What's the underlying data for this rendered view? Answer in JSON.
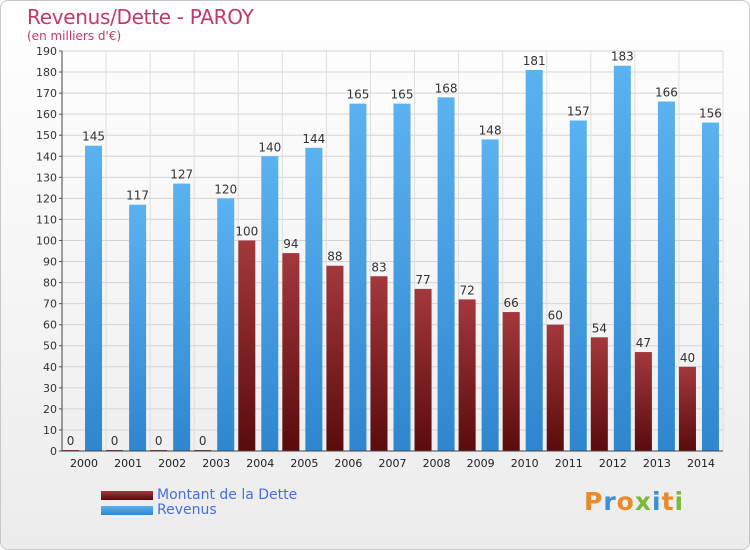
{
  "chart_data": {
    "type": "bar",
    "title": "Revenus/Dette - PAROY",
    "subtitle": "(en milliers d'€)",
    "categories": [
      "2000",
      "2001",
      "2002",
      "2003",
      "2004",
      "2005",
      "2006",
      "2007",
      "2008",
      "2009",
      "2010",
      "2011",
      "2012",
      "2013",
      "2014"
    ],
    "series": [
      {
        "name": "Montant de la Dette",
        "color": "#6b0f10",
        "values": [
          0,
          0,
          0,
          0,
          100,
          94,
          88,
          83,
          77,
          72,
          66,
          60,
          54,
          47,
          40
        ]
      },
      {
        "name": "Revenus",
        "color": "#4aa3e8",
        "values": [
          145,
          117,
          127,
          120,
          140,
          144,
          165,
          165,
          168,
          148,
          181,
          157,
          183,
          166,
          156
        ]
      }
    ],
    "ylim": [
      0,
      190
    ],
    "yticks": [
      0,
      10,
      20,
      30,
      40,
      50,
      60,
      70,
      80,
      90,
      100,
      110,
      120,
      130,
      140,
      150,
      160,
      170,
      180,
      190
    ],
    "grid": true,
    "legend_position": "bottom-left"
  },
  "logo": {
    "letters": [
      {
        "char": "P",
        "color": "#e8892a"
      },
      {
        "char": "r",
        "color": "#3c8fd6"
      },
      {
        "char": "o",
        "color": "#e8892a"
      },
      {
        "char": "x",
        "color": "#7ab93a"
      },
      {
        "char": "i",
        "color": "#3c8fd6"
      },
      {
        "char": "t",
        "color": "#e8892a"
      },
      {
        "char": "i",
        "color": "#7ab93a"
      }
    ]
  }
}
